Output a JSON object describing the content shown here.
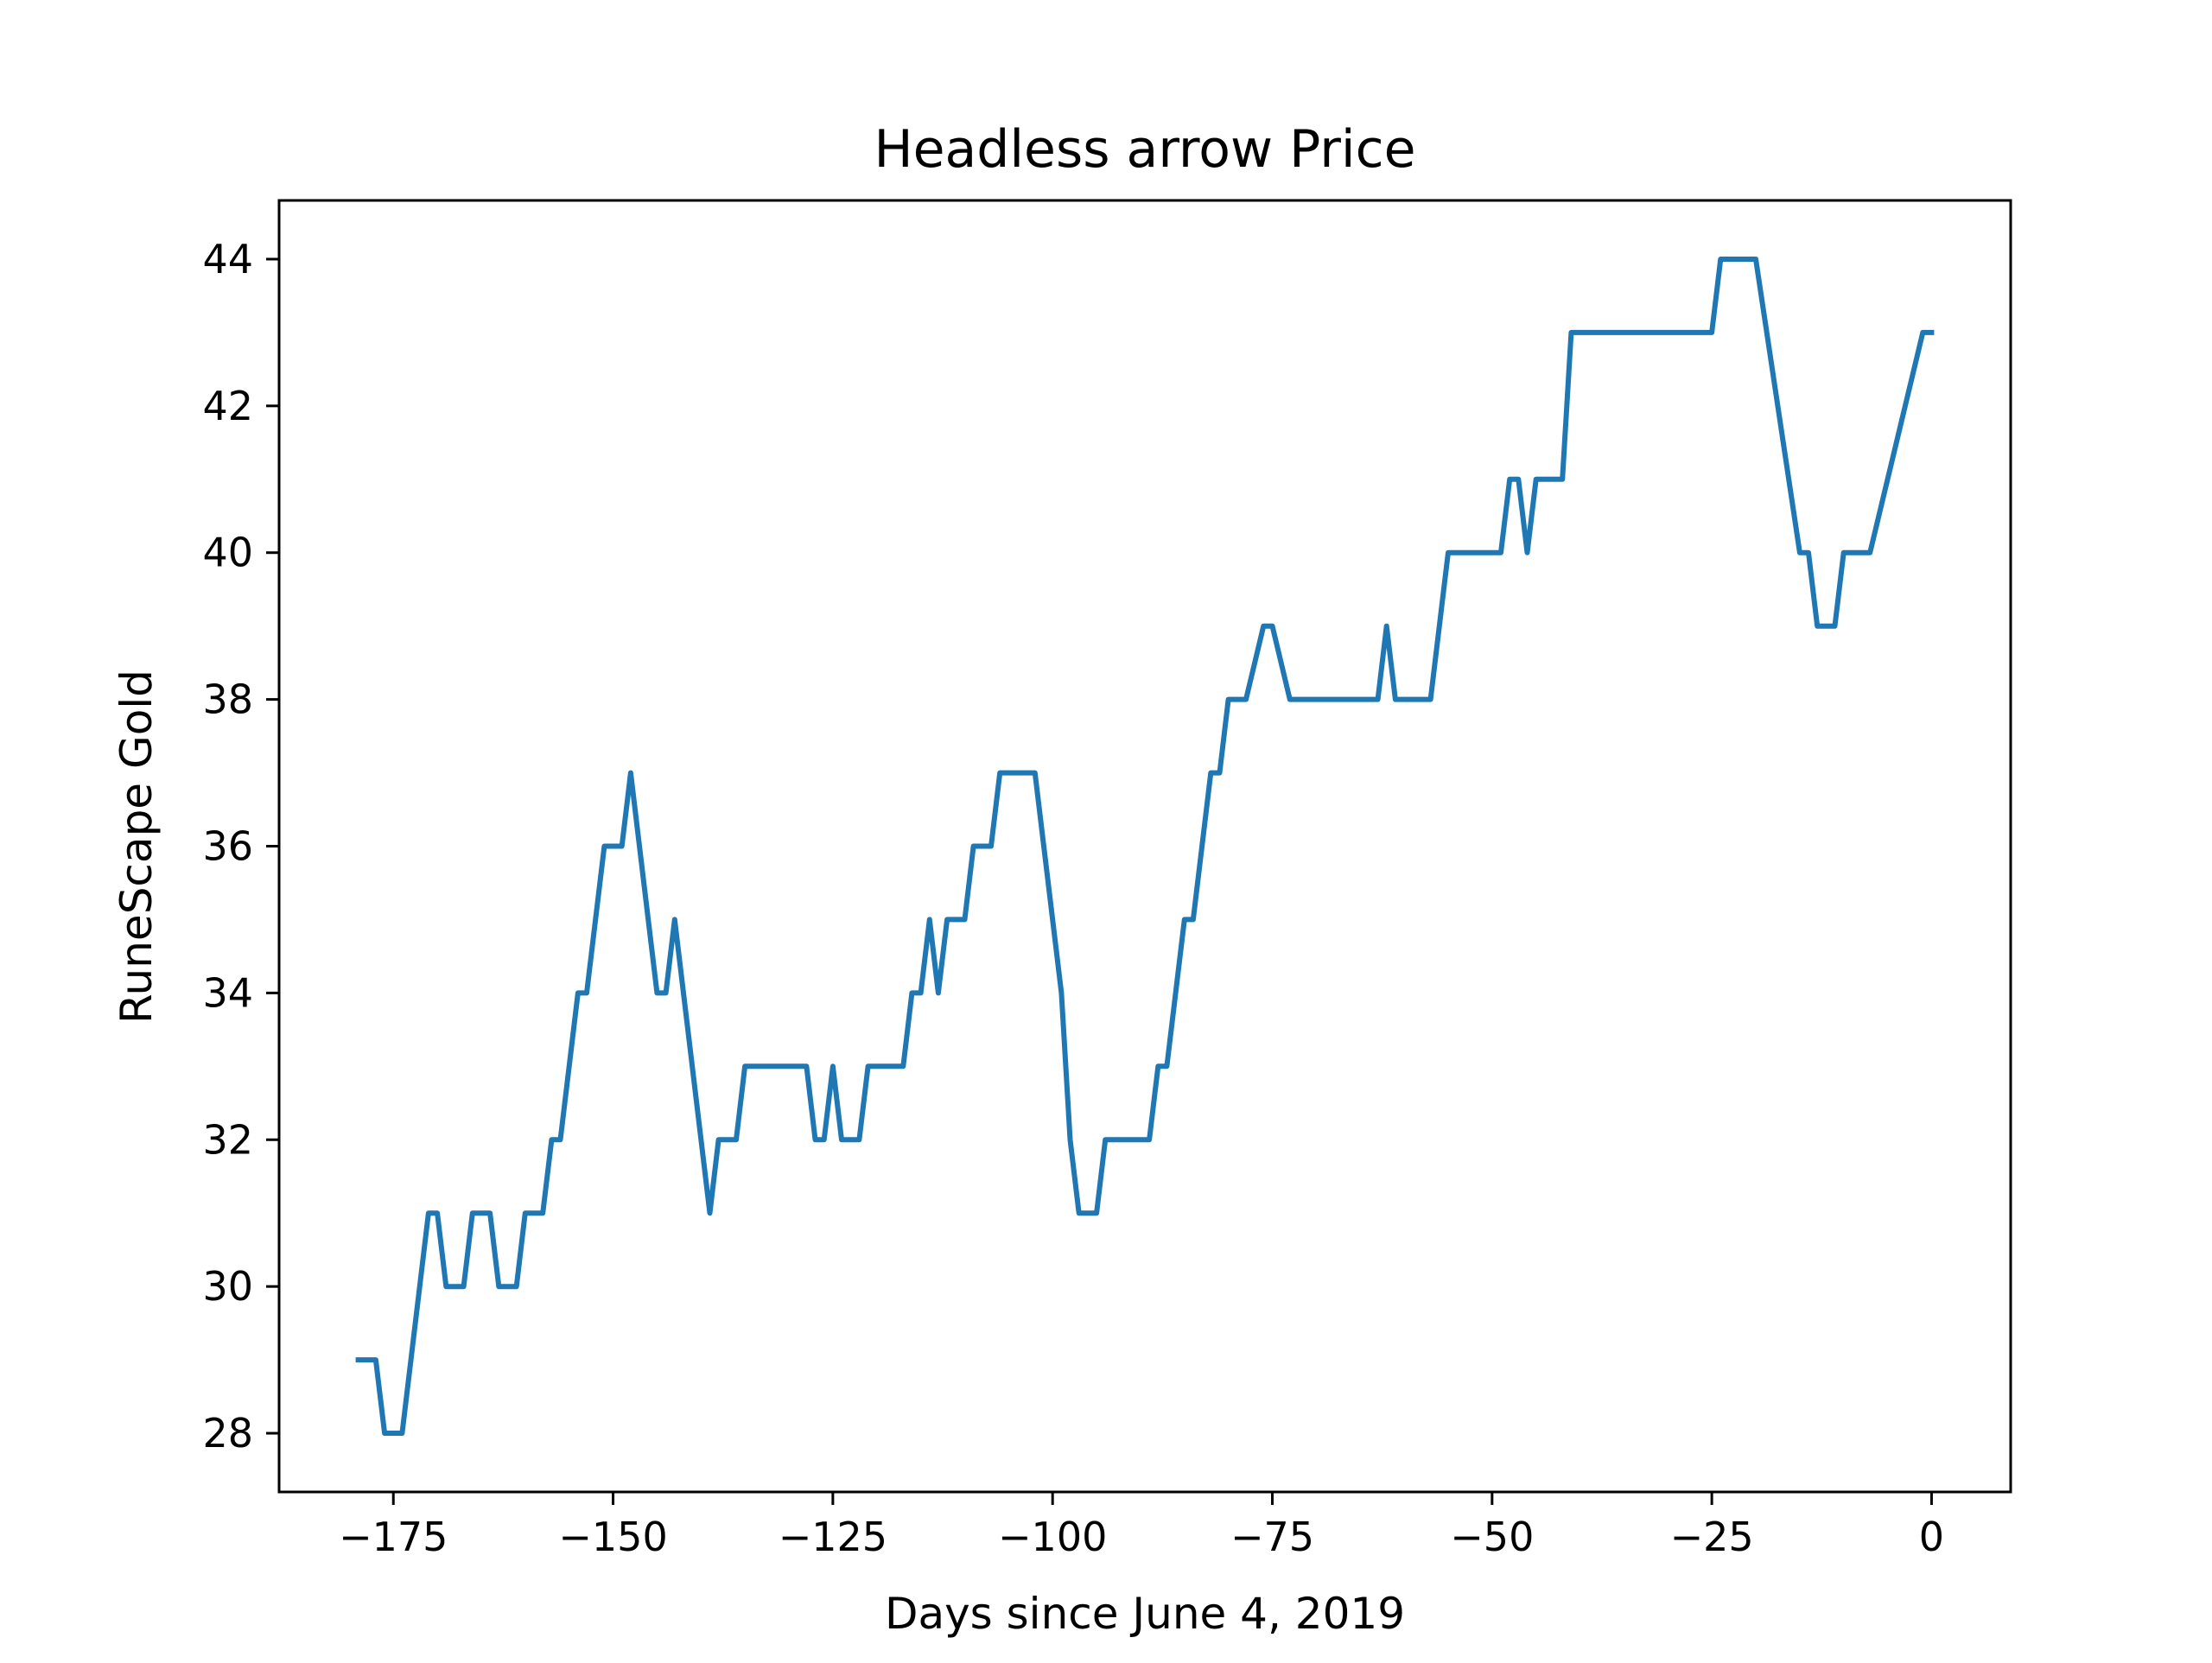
{
  "chart_data": {
    "type": "line",
    "title": "Headless arrow Price",
    "xlabel": "Days since June 4, 2019",
    "ylabel": "RuneScape Gold",
    "xlim": [
      -188,
      9
    ],
    "ylim": [
      27.2,
      44.8
    ],
    "xticks": [
      -175,
      -150,
      -125,
      -100,
      -75,
      -50,
      -25,
      0
    ],
    "xtick_labels": [
      "−175",
      "−150",
      "−125",
      "−100",
      "−75",
      "−50",
      "−25",
      "0"
    ],
    "yticks": [
      28,
      30,
      32,
      34,
      36,
      38,
      40,
      42,
      44
    ],
    "ytick_labels": [
      "28",
      "30",
      "32",
      "34",
      "36",
      "38",
      "40",
      "42",
      "44"
    ],
    "grid": false,
    "line_color": "#1f77b4",
    "series": [
      {
        "x": [
          -179,
          -177,
          -176,
          -174,
          -171,
          -170,
          -169,
          -167,
          -166,
          -164,
          -163,
          -161,
          -160,
          -158,
          -157,
          -156,
          -154,
          -153,
          -151,
          -149,
          -148,
          -146,
          -145,
          -144,
          -143,
          -139,
          -138,
          -136,
          -135,
          -128,
          -127,
          -126,
          -125,
          -124,
          -122,
          -121,
          -117,
          -116,
          -115,
          -114,
          -113,
          -112,
          -110,
          -109,
          -107,
          -106,
          -102,
          -99,
          -98,
          -97,
          -95,
          -94,
          -89,
          -88,
          -87,
          -85,
          -84,
          -82,
          -81,
          -80,
          -78,
          -76,
          -75,
          -73,
          -72,
          -63,
          -62,
          -61,
          -57,
          -55,
          -49,
          -48,
          -47,
          -46,
          -45,
          -42,
          -41,
          -25,
          -24,
          -20,
          -15,
          -14,
          -13,
          -11,
          -10,
          -7,
          -1,
          0
        ],
        "y": [
          29,
          29,
          28,
          28,
          31,
          31,
          30,
          30,
          31,
          31,
          30,
          30,
          31,
          31,
          32,
          32,
          34,
          34,
          36,
          36,
          37,
          35,
          34,
          34,
          35,
          31,
          32,
          32,
          33,
          33,
          32,
          32,
          33,
          32,
          32,
          33,
          33,
          34,
          34,
          35,
          34,
          35,
          35,
          36,
          36,
          37,
          37,
          34,
          32,
          31,
          31,
          32,
          32,
          33,
          33,
          35,
          35,
          37,
          37,
          38,
          38,
          39,
          39,
          38,
          38,
          38,
          39,
          38,
          38,
          40,
          40,
          41,
          41,
          40,
          41,
          41,
          43,
          43,
          44,
          44,
          40,
          40,
          39,
          39,
          40,
          40,
          43,
          43
        ]
      }
    ]
  }
}
